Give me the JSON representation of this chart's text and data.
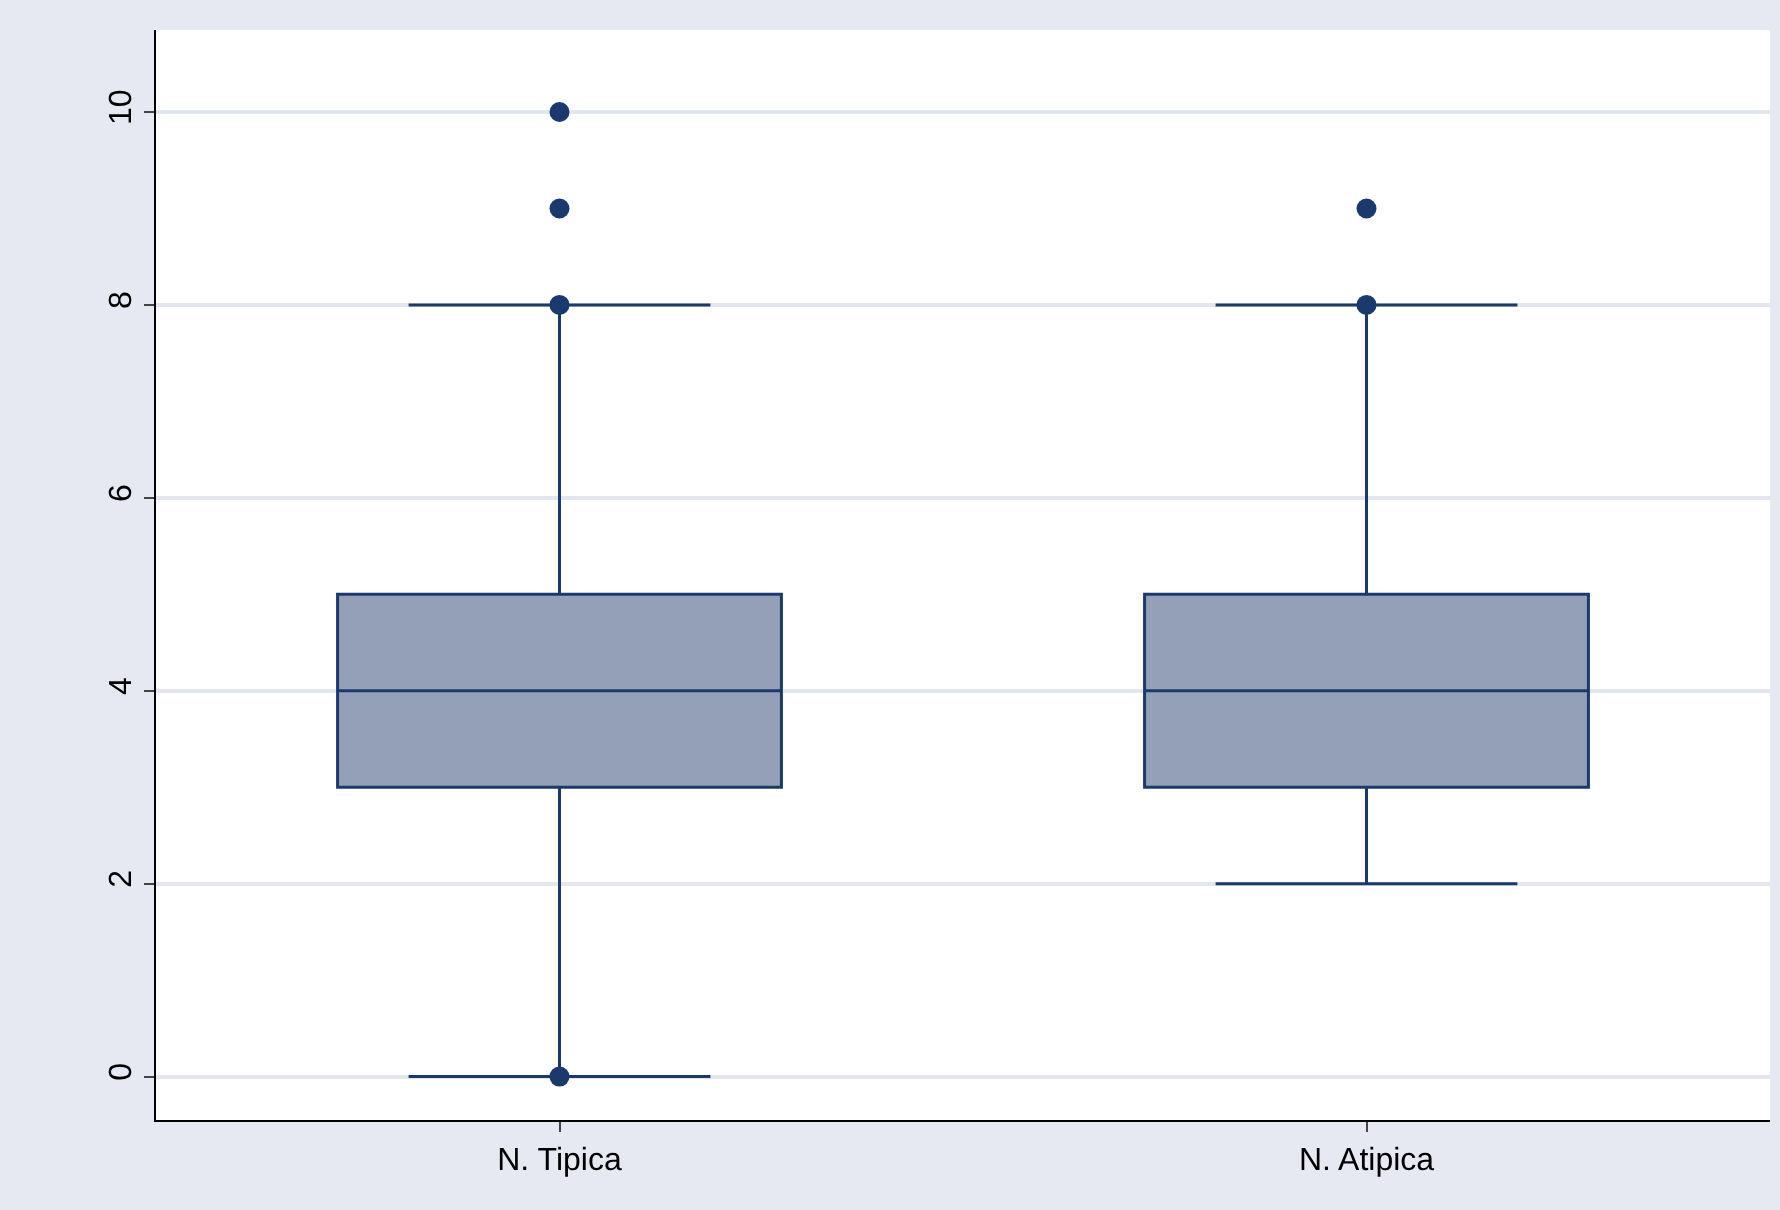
{
  "chart_data": {
    "type": "box",
    "categories": [
      "N. Tipica",
      "N. Atipica"
    ],
    "boxes": [
      {
        "low": 0,
        "q1": 3,
        "median": 4,
        "q3": 5,
        "high": 8,
        "outliers": [
          10,
          9,
          8,
          0
        ]
      },
      {
        "low": 2,
        "q1": 3,
        "median": 4,
        "q3": 5,
        "high": 8,
        "outliers": [
          9,
          8
        ]
      }
    ],
    "color": "#94a0b8",
    "ylim": [
      -0.45,
      10.85
    ],
    "yticks": [
      0,
      2,
      4,
      6,
      8,
      10
    ],
    "grid": "y",
    "marker": "circle"
  }
}
